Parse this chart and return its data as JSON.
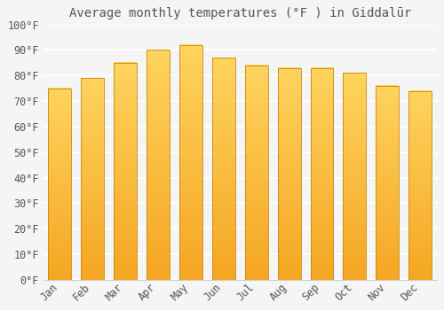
{
  "title": "Average monthly temperatures (°F ) in Giddalūr",
  "months": [
    "Jan",
    "Feb",
    "Mar",
    "Apr",
    "May",
    "Jun",
    "Jul",
    "Aug",
    "Sep",
    "Oct",
    "Nov",
    "Dec"
  ],
  "values": [
    75,
    79,
    85,
    90,
    92,
    87,
    84,
    83,
    83,
    81,
    76,
    74
  ],
  "bar_color_left": "#F5A623",
  "bar_color_right": "#FFD45E",
  "bar_edge_color": "#C8860A",
  "ylim": [
    0,
    100
  ],
  "yticks": [
    0,
    10,
    20,
    30,
    40,
    50,
    60,
    70,
    80,
    90,
    100
  ],
  "ytick_labels": [
    "0°F",
    "10°F",
    "20°F",
    "30°F",
    "40°F",
    "50°F",
    "60°F",
    "70°F",
    "80°F",
    "90°F",
    "100°F"
  ],
  "background_color": "#f5f5f5",
  "grid_color": "#ffffff",
  "title_fontsize": 10,
  "tick_fontsize": 8.5,
  "font_color": "#555555",
  "bar_width": 0.7
}
